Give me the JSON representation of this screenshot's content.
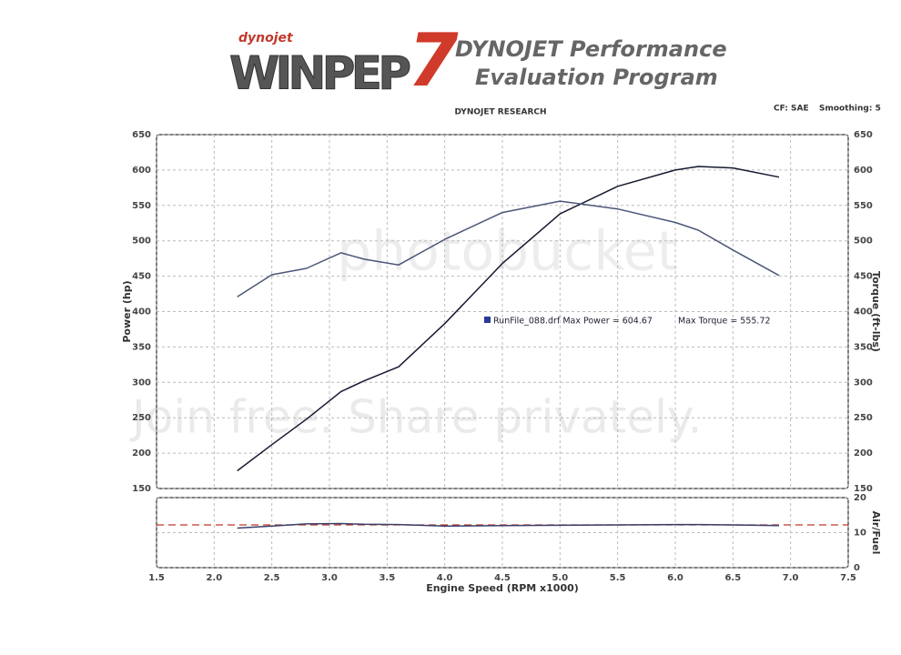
{
  "header": {
    "logo_small": "dynojet",
    "logo": "WINPEP",
    "logo_number": "7",
    "title_line1": "DYNOJET Performance",
    "title_line2": "Evaluation Program",
    "company": "DYNOJET RESEARCH",
    "cf": "CF: SAE",
    "smoothing": "Smoothing: 5"
  },
  "watermark": {
    "brand": "photobucket",
    "slogan": "Join free. Share privately."
  },
  "chart_data": [
    {
      "type": "line",
      "ylabel": "Power (hp)",
      "y2label": "Torque (ft-lbs)",
      "annotations": [
        "RunFile_088.drf Max Power = 604.67",
        "Max Torque = 555.72"
      ],
      "legend_color": "#2a3a9a",
      "x": [
        2.2,
        2.5,
        2.8,
        3.1,
        3.3,
        3.6,
        4.0,
        4.5,
        5.0,
        5.5,
        6.0,
        6.2,
        6.5,
        6.9
      ],
      "xlim": [
        1.5,
        7.5
      ],
      "series": [
        {
          "color": "#15192e",
          "values": [
            175,
            212,
            248,
            287,
            302,
            322,
            383,
            468,
            538,
            577,
            600,
            605,
            603,
            590
          ]
        },
        {
          "color": "#4b5678",
          "axis": "y2",
          "values": [
            421,
            452,
            461,
            483,
            474,
            466,
            502,
            540,
            556,
            545,
            526,
            515,
            487,
            451
          ]
        }
      ],
      "ylim": [
        150,
        650
      ],
      "yticks": [
        150,
        200,
        250,
        300,
        350,
        400,
        450,
        500,
        550,
        600,
        650
      ],
      "y2lim": [
        150,
        650
      ],
      "y2ticks": [
        150,
        200,
        250,
        300,
        350,
        400,
        450,
        500,
        550,
        600,
        650
      ],
      "grid": true
    },
    {
      "type": "line",
      "y2label": "Air/Fuel",
      "xlabel": "Engine Speed (RPM x1000)",
      "x": [
        2.2,
        2.5,
        2.8,
        3.1,
        3.3,
        3.6,
        4.0,
        4.5,
        5.0,
        5.5,
        6.0,
        6.2,
        6.5,
        6.9
      ],
      "xlim": [
        1.5,
        7.5
      ],
      "xticks": [
        1.5,
        {
          "value": 2,
          "label": "2.0"
        },
        2.5,
        {
          "value": 3,
          "label": "3.0"
        },
        3.5,
        {
          "value": 4,
          "label": "4.0"
        },
        4.5,
        {
          "value": 5,
          "label": "5.0"
        },
        5.5,
        {
          "value": 6,
          "label": "6.0"
        },
        6.5,
        {
          "value": 7,
          "label": "7.0"
        },
        7.5
      ],
      "series": [
        {
          "color": "#3a3f6a",
          "axis": "y2",
          "values": [
            11.3,
            11.9,
            12.5,
            12.6,
            12.4,
            12.3,
            11.9,
            12.0,
            12.1,
            12.2,
            12.3,
            12.3,
            12.2,
            12.0
          ]
        }
      ],
      "reference": {
        "value": 12.2,
        "color": "#c0392b"
      },
      "y2lim": [
        0,
        20
      ],
      "y2ticks": [
        0,
        10,
        20
      ],
      "grid": true
    }
  ]
}
